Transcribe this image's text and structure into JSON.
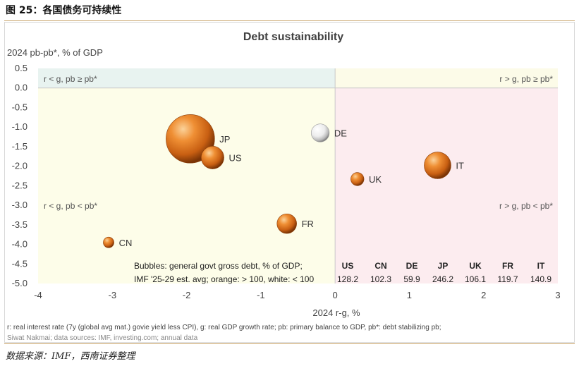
{
  "figure_title": "图 25：各国债务可持续性",
  "source": "数据来源：IMF，西南证券整理",
  "chart_data": {
    "type": "scatter",
    "subtype": "bubble",
    "title": "Debt sustainability",
    "ylabel": "2024 pb-pb*, % of GDP",
    "xlabel": "2024 r-g, %",
    "xlim": [
      -4,
      3
    ],
    "ylim": [
      -5,
      0.5
    ],
    "x_ticks": [
      "-4",
      "-3",
      "-2",
      "-1",
      "0",
      "1",
      "2",
      "3"
    ],
    "y_ticks": [
      "0.5",
      "0.0",
      "-0.5",
      "-1.0",
      "-1.5",
      "-2.0",
      "-2.5",
      "-3.0",
      "-3.5",
      "-4.0",
      "-4.5",
      "-5.0"
    ],
    "quadrant_labels": {
      "top_left": "r < g, pb ≥ pb*",
      "top_right": "r > g, pb ≥ pb*",
      "bottom_left": "r < g, pb < pb*",
      "bottom_right": "r > g, pb < pb*"
    },
    "quadrant_colors": {
      "top_left": "#e8f3f0",
      "top_right": "#fcfbe8",
      "bottom_left": "#fdfde9",
      "bottom_right": "#fcecef"
    },
    "points": [
      {
        "label": "JP",
        "x": -1.95,
        "y": -1.3,
        "debt": 246.2,
        "color": "orange"
      },
      {
        "label": "US",
        "x": -1.65,
        "y": -1.78,
        "debt": 128.2,
        "color": "orange"
      },
      {
        "label": "DE",
        "x": -0.2,
        "y": -1.15,
        "debt": 59.9,
        "color": "white"
      },
      {
        "label": "IT",
        "x": 1.38,
        "y": -1.98,
        "debt": 140.9,
        "color": "orange"
      },
      {
        "label": "UK",
        "x": 0.3,
        "y": -2.33,
        "debt": 106.1,
        "color": "orange"
      },
      {
        "label": "FR",
        "x": -0.65,
        "y": -3.47,
        "debt": 119.7,
        "color": "orange"
      },
      {
        "label": "CN",
        "x": -3.05,
        "y": -3.95,
        "debt": 102.3,
        "color": "orange"
      }
    ],
    "table": {
      "line1": "Bubbles: general govt gross debt, % of GDP;",
      "line2": "IMF '25-29 est. avg; orange: > 100, white: < 100",
      "columns": [
        "US",
        "CN",
        "DE",
        "JP",
        "UK",
        "FR",
        "IT"
      ],
      "values": [
        "128.2",
        "102.3",
        "59.9",
        "246.2",
        "106.1",
        "119.7",
        "140.9"
      ]
    },
    "footnote1": "r: real interest rate (7y (global avg mat.) govie yield less CPI), g: real GDP growth rate; pb: primary balance to GDP, pb*: debt stabilizing pb;",
    "footnote2": "Siwat Nakmai; data sources: IMF, investing.com; annual data",
    "colors": {
      "orange": "#e07a1f",
      "white": "#eeeeee",
      "axis_text": "#444444"
    }
  }
}
